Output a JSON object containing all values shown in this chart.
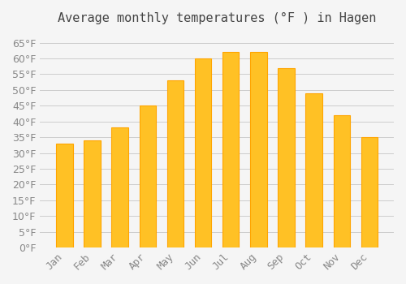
{
  "title": "Average monthly temperatures (°F ) in Hagen",
  "months": [
    "Jan",
    "Feb",
    "Mar",
    "Apr",
    "May",
    "Jun",
    "Jul",
    "Aug",
    "Sep",
    "Oct",
    "Nov",
    "Dec"
  ],
  "values": [
    33,
    34,
    38,
    45,
    53,
    60,
    62,
    62,
    57,
    49,
    42,
    35
  ],
  "bar_color": "#FFC125",
  "bar_edge_color": "#FFA500",
  "background_color": "#F5F5F5",
  "grid_color": "#CCCCCC",
  "text_color": "#888888",
  "ylim": [
    0,
    68
  ],
  "yticks": [
    0,
    5,
    10,
    15,
    20,
    25,
    30,
    35,
    40,
    45,
    50,
    55,
    60,
    65
  ],
  "title_fontsize": 11,
  "tick_fontsize": 9
}
